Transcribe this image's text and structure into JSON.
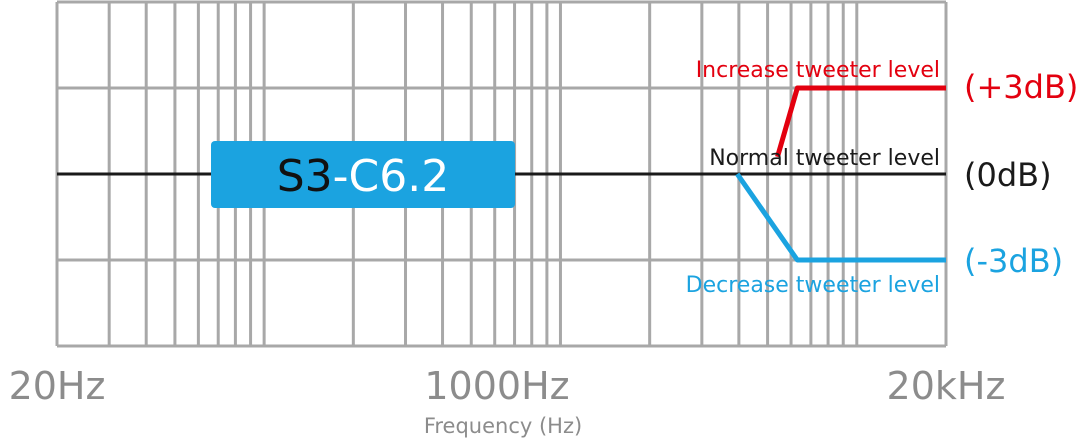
{
  "chart_data": {
    "type": "line",
    "title": "",
    "xlabel": "Frequency (Hz)",
    "ylabel": "",
    "x_scale": "log",
    "xlim": [
      20,
      20000
    ],
    "ylim": [
      -6,
      6
    ],
    "grid": true,
    "x_tick_labels": [
      "20Hz",
      "1000Hz",
      "20kHz"
    ],
    "x_tick_values": [
      20,
      1000,
      20000
    ],
    "model_badge": {
      "prefix": "S3",
      "suffix": "-C6.2"
    },
    "series": [
      {
        "name": "Normal tweeter level",
        "level_label": "(0dB)",
        "color": "#1a1a1a",
        "x": [
          20,
          20000
        ],
        "y": [
          0,
          0
        ]
      },
      {
        "name": "Increase tweeter level",
        "level_label": "(+3dB)",
        "color": "#e3000f",
        "x": [
          5400,
          6300,
          20000
        ],
        "y": [
          0.6,
          3,
          3
        ]
      },
      {
        "name": "Decrease tweeter level",
        "level_label": "(-3dB)",
        "color": "#1ba3e0",
        "x": [
          3950,
          6300,
          20000
        ],
        "y": [
          0,
          -3,
          -3
        ]
      }
    ]
  }
}
